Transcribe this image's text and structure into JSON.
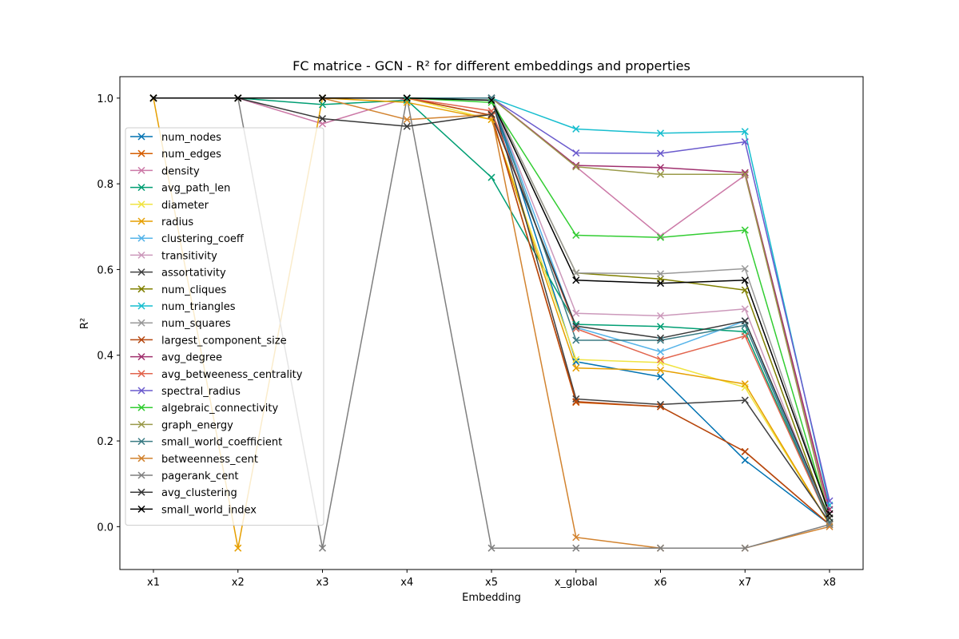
{
  "chart_data": {
    "type": "line",
    "title": "FC matrice - GCN - R² for different embeddings and properties",
    "xlabel": "Embedding",
    "ylabel": "R²",
    "categories": [
      "x1",
      "x2",
      "x3",
      "x4",
      "x5",
      "x_global",
      "x6",
      "x7",
      "x8"
    ],
    "ylim": [
      -0.1,
      1.05
    ],
    "yticks": [
      0.0,
      0.2,
      0.4,
      0.6,
      0.8,
      1.0
    ],
    "ytick_labels": [
      "0.0",
      "0.2",
      "0.4",
      "0.6",
      "0.8",
      "1.0"
    ],
    "grid": false,
    "legend_position": "upper-left",
    "marker": "x",
    "series": [
      {
        "name": "num_nodes",
        "color": "#0072b2",
        "values": [
          1.0,
          1.0,
          1.0,
          1.0,
          1.0,
          0.385,
          0.35,
          0.155,
          0.005
        ]
      },
      {
        "name": "num_edges",
        "color": "#d55e00",
        "values": [
          1.0,
          1.0,
          1.0,
          1.0,
          0.96,
          0.29,
          0.28,
          0.175,
          0.005
        ]
      },
      {
        "name": "density",
        "color": "#cc79a7",
        "values": [
          1.0,
          1.0,
          0.94,
          1.0,
          1.0,
          0.84,
          0.678,
          0.82,
          0.03
        ]
      },
      {
        "name": "avg_path_len",
        "color": "#009e73",
        "values": [
          1.0,
          1.0,
          0.985,
          0.995,
          0.815,
          0.472,
          0.467,
          0.455,
          0.01
        ]
      },
      {
        "name": "diameter",
        "color": "#f0e442",
        "values": [
          1.0,
          1.0,
          1.0,
          1.0,
          0.95,
          0.39,
          0.383,
          0.325,
          0.005
        ]
      },
      {
        "name": "radius",
        "color": "#e69f00",
        "values": [
          1.0,
          -0.05,
          1.0,
          0.99,
          0.95,
          0.37,
          0.365,
          0.333,
          0.005
        ]
      },
      {
        "name": "clustering_coeff",
        "color": "#56b4e9",
        "values": [
          1.0,
          1.0,
          1.0,
          1.0,
          1.0,
          0.465,
          0.408,
          0.48,
          0.01
        ]
      },
      {
        "name": "transitivity",
        "color": "#cc99bb",
        "values": [
          1.0,
          1.0,
          1.0,
          1.0,
          1.0,
          0.498,
          0.492,
          0.508,
          0.01
        ]
      },
      {
        "name": "assortativity",
        "color": "#404040",
        "values": [
          1.0,
          1.0,
          1.0,
          1.0,
          1.0,
          0.298,
          0.285,
          0.295,
          0.01
        ]
      },
      {
        "name": "num_cliques",
        "color": "#808000",
        "values": [
          1.0,
          1.0,
          1.0,
          1.0,
          1.0,
          0.592,
          0.578,
          0.552,
          0.01
        ]
      },
      {
        "name": "num_triangles",
        "color": "#17becf",
        "values": [
          1.0,
          1.0,
          1.0,
          1.0,
          1.0,
          0.928,
          0.918,
          0.922,
          0.05
        ]
      },
      {
        "name": "num_squares",
        "color": "#999999",
        "values": [
          1.0,
          1.0,
          1.0,
          1.0,
          1.0,
          0.592,
          0.59,
          0.602,
          0.03
        ]
      },
      {
        "name": "largest_component_size",
        "color": "#b5460f",
        "values": [
          1.0,
          1.0,
          1.0,
          1.0,
          0.96,
          0.292,
          0.28,
          0.175,
          0.005
        ]
      },
      {
        "name": "avg_degree",
        "color": "#a0306e",
        "values": [
          1.0,
          1.0,
          1.0,
          1.0,
          1.0,
          0.843,
          0.838,
          0.826,
          0.04
        ]
      },
      {
        "name": "avg_betweeness_centrality",
        "color": "#e2654e",
        "values": [
          1.0,
          1.0,
          1.0,
          1.0,
          0.97,
          0.462,
          0.39,
          0.445,
          0.01
        ]
      },
      {
        "name": "spectral_radius",
        "color": "#6a5acd",
        "values": [
          1.0,
          1.0,
          1.0,
          1.0,
          1.0,
          0.872,
          0.871,
          0.898,
          0.06
        ]
      },
      {
        "name": "algebraic_connectivity",
        "color": "#32cd32",
        "values": [
          1.0,
          1.0,
          1.0,
          1.0,
          0.99,
          0.68,
          0.675,
          0.692,
          0.02
        ]
      },
      {
        "name": "graph_energy",
        "color": "#9a9a4a",
        "values": [
          1.0,
          1.0,
          1.0,
          1.0,
          1.0,
          0.84,
          0.822,
          0.822,
          0.02
        ]
      },
      {
        "name": "small_world_coefficient",
        "color": "#3b7b84",
        "values": [
          1.0,
          1.0,
          1.0,
          1.0,
          1.0,
          0.435,
          0.435,
          0.47,
          0.01
        ]
      },
      {
        "name": "betweenness_cent",
        "color": "#d2832f",
        "values": [
          1.0,
          1.0,
          1.0,
          0.95,
          0.962,
          -0.025,
          -0.05,
          -0.05,
          0.0
        ]
      },
      {
        "name": "pagerank_cent",
        "color": "#7f7f7f",
        "values": [
          1.0,
          1.0,
          -0.05,
          1.0,
          -0.05,
          -0.05,
          -0.05,
          -0.05,
          0.005
        ]
      },
      {
        "name": "avg_clustering",
        "color": "#383838",
        "values": [
          1.0,
          1.0,
          0.952,
          0.934,
          0.962,
          0.468,
          0.44,
          0.48,
          0.02
        ]
      },
      {
        "name": "small_world_index",
        "color": "#000000",
        "values": [
          1.0,
          1.0,
          1.0,
          1.0,
          0.995,
          0.575,
          0.568,
          0.575,
          0.03
        ]
      }
    ]
  }
}
